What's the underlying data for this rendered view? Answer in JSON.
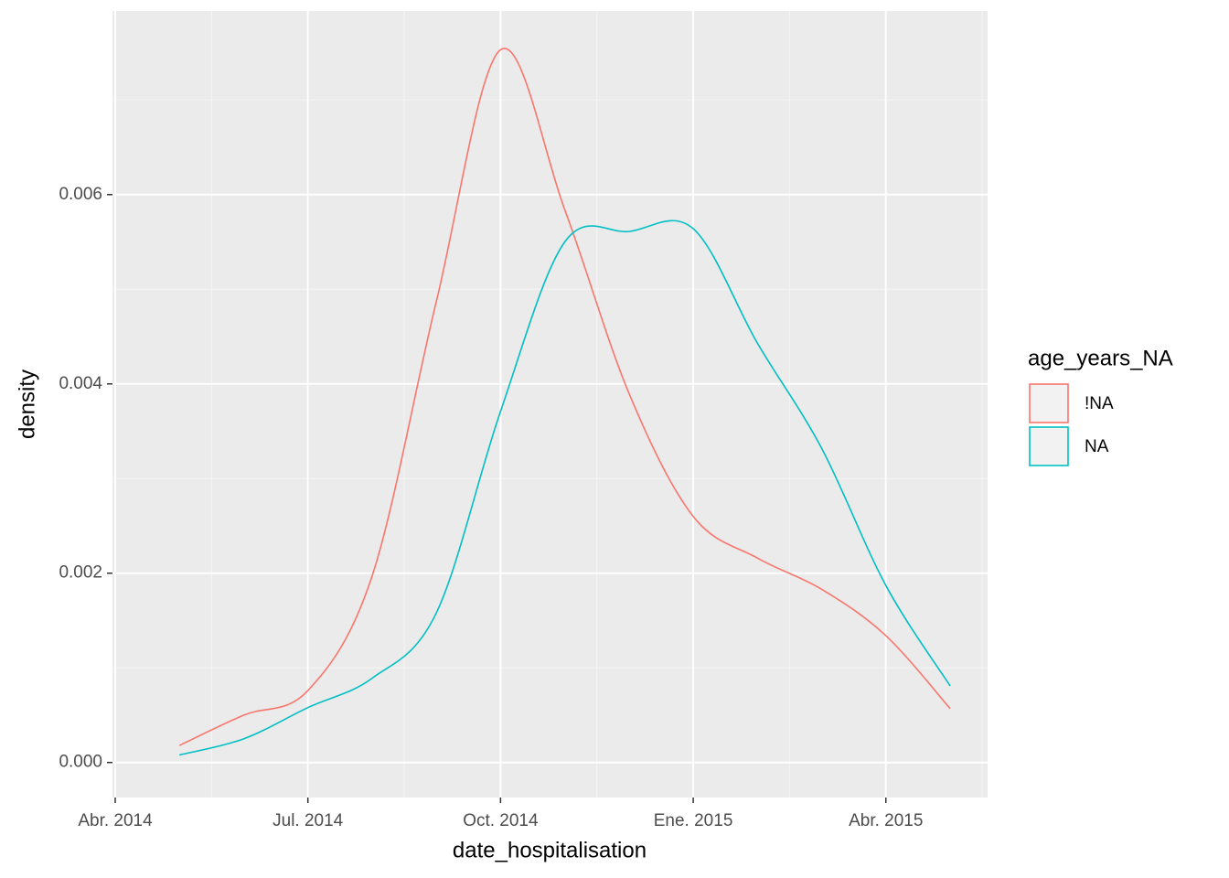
{
  "chart_data": {
    "type": "line",
    "x_label": "date_hospitalisation",
    "y_label": "density",
    "x": [
      "2014-05",
      "2014-06",
      "2014-07",
      "2014-08",
      "2014-09",
      "2014-10",
      "2014-11",
      "2014-12",
      "2015-01",
      "2015-02",
      "2015-03",
      "2015-04",
      "2015-05"
    ],
    "series": [
      {
        "name": "!NA",
        "color": "#f8766d",
        "values": [
          0.00018,
          0.0005,
          0.00076,
          0.00197,
          0.00487,
          0.00753,
          0.00584,
          0.0039,
          0.0026,
          0.00216,
          0.00183,
          0.00134,
          0.00057
        ]
      },
      {
        "name": "NA",
        "color": "#00bfc4",
        "values": [
          8e-05,
          0.00025,
          0.00058,
          0.00089,
          0.00158,
          0.00371,
          0.0055,
          0.00561,
          0.00564,
          0.00443,
          0.00332,
          0.00187,
          0.00081
        ]
      }
    ],
    "xlim": [
      "2014-04",
      "2015-05"
    ],
    "xticks": [
      {
        "value": "2014-04",
        "label": "Abr. 2014"
      },
      {
        "value": "2014-07",
        "label": "Jul. 2014"
      },
      {
        "value": "2014-10",
        "label": "Oct. 2014"
      },
      {
        "value": "2015-01",
        "label": "Ene. 2015"
      },
      {
        "value": "2015-04",
        "label": "Abr. 2015"
      }
    ],
    "ylim": [
      -0.00037,
      0.00794
    ],
    "yticks": [
      {
        "value": 0,
        "label": "0.000"
      },
      0.002,
      0.004,
      0.006
    ],
    "grid": true,
    "legend_title": "age_years_NA",
    "legend": "right"
  }
}
